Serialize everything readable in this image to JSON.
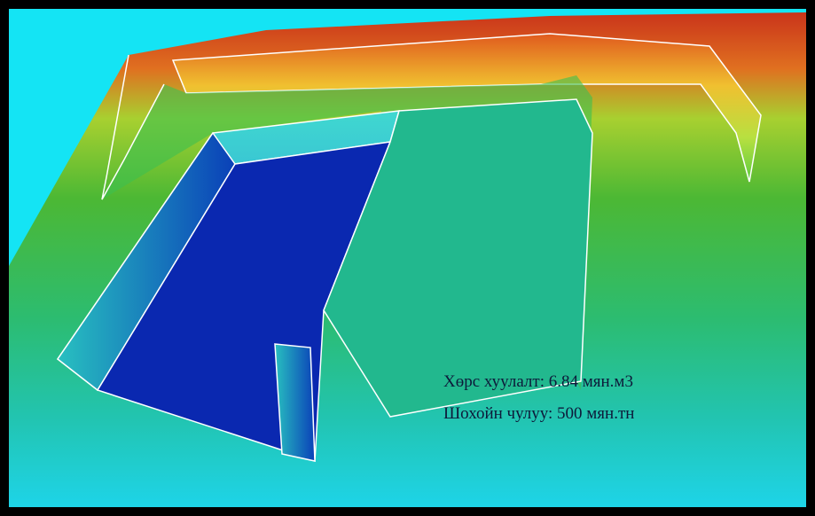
{
  "annotations": [
    {
      "text": "Хөрс хуулалт: 6.84 мян.м3"
    },
    {
      "text": "Шохойн чулуу: 500 мян.тн"
    }
  ]
}
